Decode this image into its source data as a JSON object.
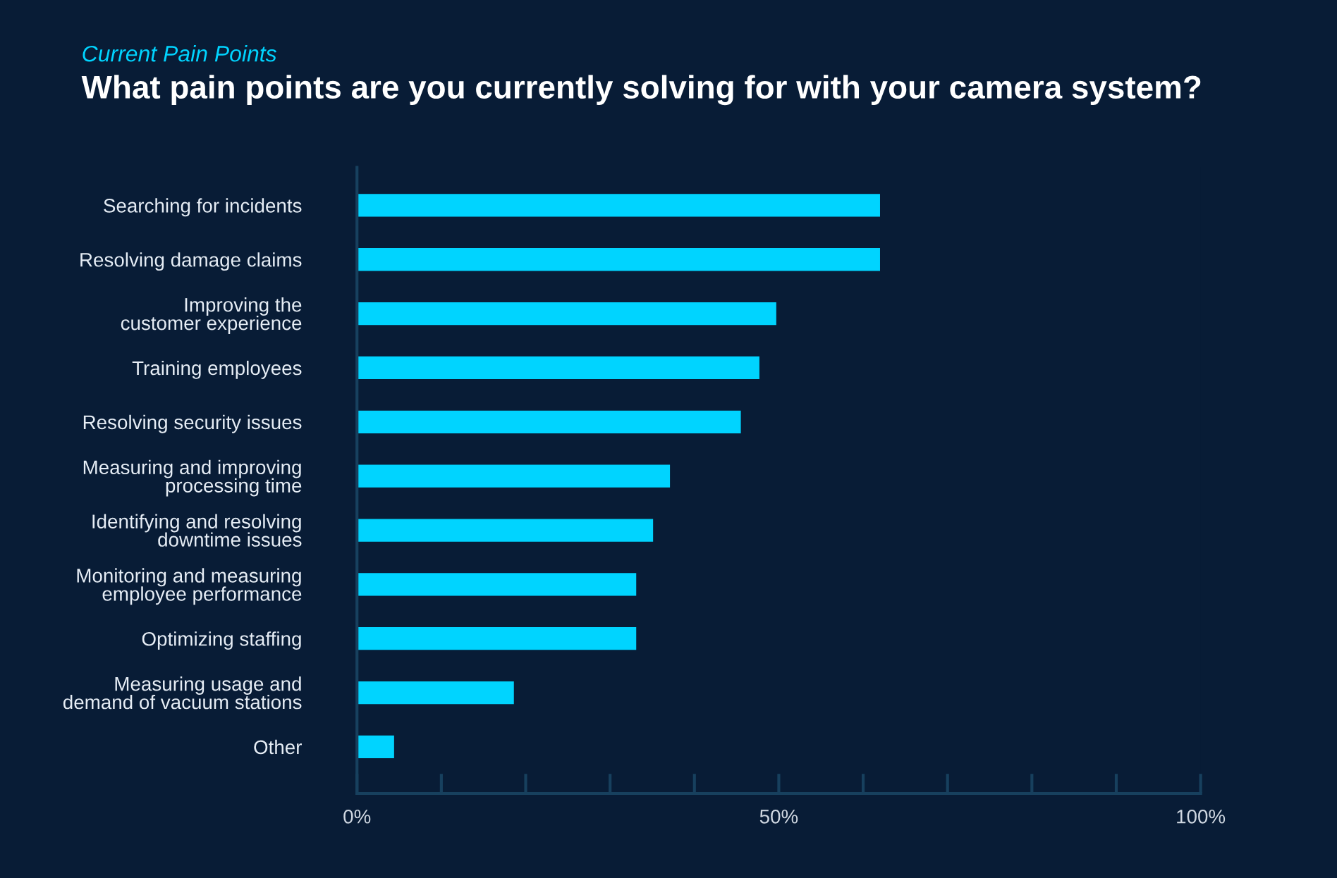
{
  "chart_data": {
    "type": "bar",
    "orientation": "horizontal",
    "subtitle": "Current Pain Points",
    "title": "What pain points are you currently solving for with your camera system?",
    "categories": [
      "Searching for incidents",
      "Resolving damage claims",
      "Improving the\ncustomer experience",
      "Training employees",
      "Resolving security issues",
      "Measuring and improving\nprocessing time",
      "Identifying and resolving\ndowntime issues",
      "Monitoring and measuring\nemployee performance",
      "Optimizing staffing",
      "Measuring usage and\ndemand of vacuum stations",
      "Other"
    ],
    "values": [
      62.0,
      62.0,
      49.7,
      47.7,
      45.5,
      37.1,
      35.1,
      33.1,
      33.1,
      18.6,
      4.4
    ],
    "color": "#00d4ff",
    "xlim": [
      0,
      100
    ],
    "xticks": [
      {
        "value": 0,
        "label": "0%"
      },
      {
        "value": 10,
        "label": null
      },
      {
        "value": 20,
        "label": null
      },
      {
        "value": 30,
        "label": null
      },
      {
        "value": 40,
        "label": null
      },
      {
        "value": 50,
        "label": "50%"
      },
      {
        "value": 60,
        "label": null
      },
      {
        "value": 70,
        "label": null
      },
      {
        "value": 80,
        "label": null
      },
      {
        "value": 90,
        "label": null
      },
      {
        "value": 100,
        "label": "100%"
      }
    ],
    "grid": false,
    "legend": false
  }
}
